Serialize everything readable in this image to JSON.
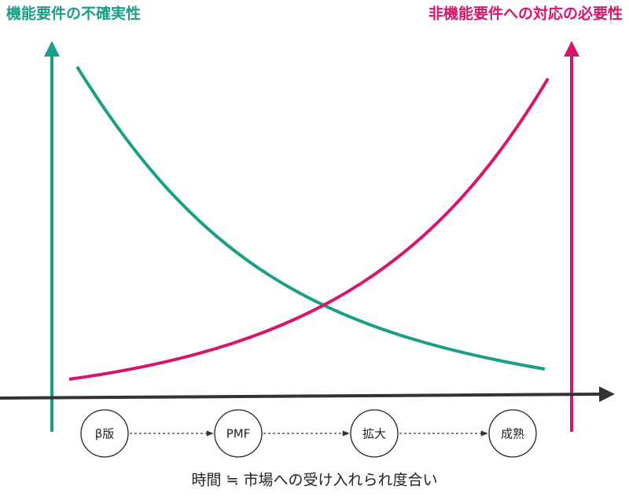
{
  "left_axis": {
    "label": "機能要件の不確実性"
  },
  "right_axis": {
    "label": "非機能要件への対応の必要性"
  },
  "stages": [
    {
      "label": "β版"
    },
    {
      "label": "PMF"
    },
    {
      "label": "拡大"
    },
    {
      "label": "成熟"
    }
  ],
  "x_axis": {
    "label": "時間 ≒ 市場への受け入れられ度合い"
  }
}
